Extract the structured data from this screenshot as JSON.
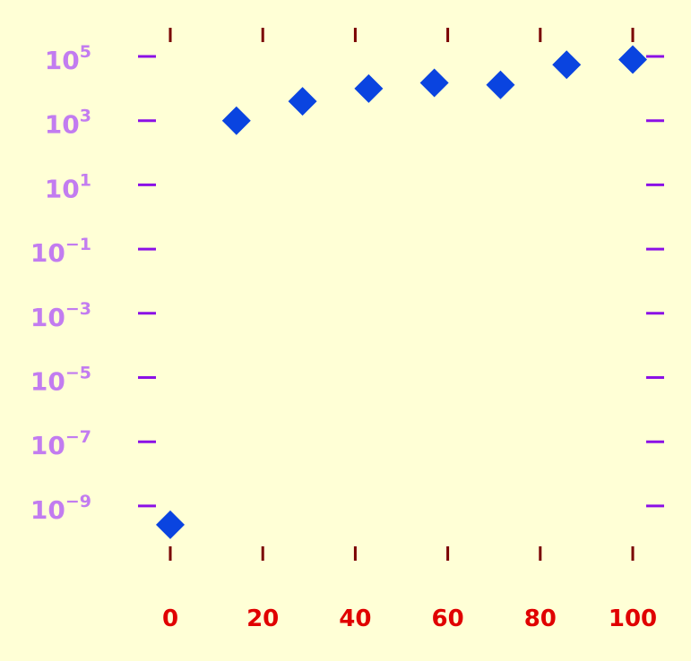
{
  "chart_data": {
    "type": "scatter",
    "title": "",
    "xlabel": "",
    "ylabel": "",
    "x_scale": "linear",
    "y_scale": "log",
    "xlim": [
      0,
      100
    ],
    "ylim_exponent": [
      -10,
      5
    ],
    "x_ticks": [
      0,
      20,
      40,
      60,
      80,
      100
    ],
    "x_tick_labels": [
      "0",
      "20",
      "40",
      "60",
      "80",
      "100"
    ],
    "y_ticks": [
      {
        "base": "10",
        "exp": "5"
      },
      {
        "base": "10",
        "exp": "3"
      },
      {
        "base": "10",
        "exp": "1"
      },
      {
        "base": "10",
        "exp": "−1"
      },
      {
        "base": "10",
        "exp": "−3"
      },
      {
        "base": "10",
        "exp": "−5"
      },
      {
        "base": "10",
        "exp": "−7"
      },
      {
        "base": "10",
        "exp": "−9"
      }
    ],
    "y_tick_values_exp": [
      5,
      3,
      1,
      -1,
      -3,
      -5,
      -7,
      -9
    ],
    "grid": false,
    "marker": "diamond",
    "series": [
      {
        "x": [
          0,
          14.3,
          28.6,
          42.9,
          57.1,
          71.4,
          85.7,
          100
        ],
        "y": [
          2.6e-10,
          1000,
          4000,
          10000,
          15000,
          13000,
          55000,
          80000
        ]
      }
    ],
    "colors": {
      "background": "#ffffd6",
      "marker": "#0a44e0",
      "y_tick_mark": "#8b10e6",
      "y_tick_label": "#c27cf0",
      "x_tick_mark": "#7a0000",
      "x_tick_label": "#e00000"
    }
  }
}
